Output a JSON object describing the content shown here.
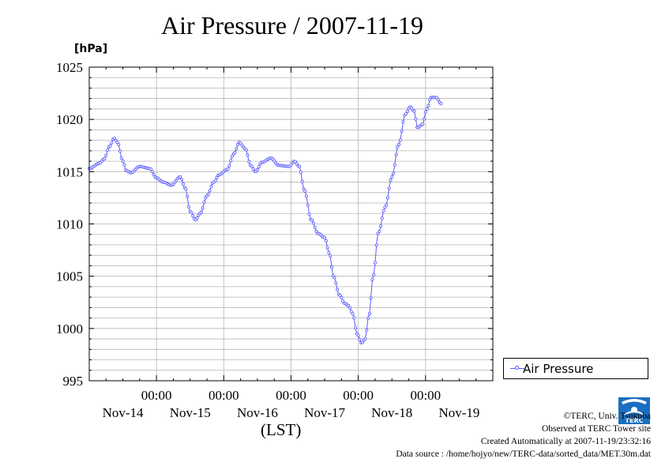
{
  "chart_data": {
    "type": "line",
    "title": "Air Pressure / 2007-11-19",
    "ylabel": "[hPa]",
    "xlabel": "(LST)",
    "ylim": [
      995,
      1025
    ],
    "yticks": [
      "995",
      "1000",
      "1005",
      "1010",
      "1015",
      "1020",
      "1025"
    ],
    "xlim_days": [
      0,
      6
    ],
    "xticks": [
      {
        "time": "00:00",
        "date": "Nov-14"
      },
      {
        "time": "00:00",
        "date": "Nov-15"
      },
      {
        "time": "00:00",
        "date": "Nov-16"
      },
      {
        "time": "00:00",
        "date": "Nov-17"
      },
      {
        "time": "00:00",
        "date": "Nov-18"
      },
      {
        "time": "",
        "date": "Nov-19"
      }
    ],
    "grid": true,
    "legend_position": "right",
    "series": [
      {
        "name": "Air Pressure",
        "color": "#5a5aff",
        "anchors": [
          [
            0.0,
            1015.3
          ],
          [
            0.15,
            1015.8
          ],
          [
            0.22,
            1016.2
          ],
          [
            0.3,
            1017.4
          ],
          [
            0.37,
            1018.2
          ],
          [
            0.42,
            1017.8
          ],
          [
            0.5,
            1016.0
          ],
          [
            0.55,
            1015.1
          ],
          [
            0.62,
            1014.9
          ],
          [
            0.75,
            1015.5
          ],
          [
            0.9,
            1015.3
          ],
          [
            1.0,
            1014.4
          ],
          [
            1.1,
            1014.0
          ],
          [
            1.22,
            1013.7
          ],
          [
            1.35,
            1014.5
          ],
          [
            1.43,
            1013.4
          ],
          [
            1.5,
            1011.2
          ],
          [
            1.58,
            1010.4
          ],
          [
            1.65,
            1011.0
          ],
          [
            1.75,
            1012.7
          ],
          [
            1.85,
            1014.0
          ],
          [
            1.93,
            1014.7
          ],
          [
            2.05,
            1015.2
          ],
          [
            2.15,
            1016.7
          ],
          [
            2.23,
            1017.8
          ],
          [
            2.32,
            1017.2
          ],
          [
            2.4,
            1015.6
          ],
          [
            2.47,
            1015.0
          ],
          [
            2.57,
            1015.9
          ],
          [
            2.7,
            1016.3
          ],
          [
            2.82,
            1015.6
          ],
          [
            2.97,
            1015.5
          ],
          [
            3.05,
            1016.0
          ],
          [
            3.12,
            1015.5
          ],
          [
            3.2,
            1013.2
          ],
          [
            3.3,
            1010.4
          ],
          [
            3.4,
            1009.1
          ],
          [
            3.5,
            1008.7
          ],
          [
            3.57,
            1007.2
          ],
          [
            3.63,
            1005.0
          ],
          [
            3.72,
            1003.2
          ],
          [
            3.8,
            1002.4
          ],
          [
            3.85,
            1002.2
          ],
          [
            3.92,
            1001.4
          ],
          [
            3.98,
            999.5
          ],
          [
            4.05,
            998.6
          ],
          [
            4.1,
            999.0
          ],
          [
            4.16,
            1001.3
          ],
          [
            4.22,
            1005.0
          ],
          [
            4.3,
            1009.2
          ],
          [
            4.4,
            1011.6
          ],
          [
            4.5,
            1014.5
          ],
          [
            4.6,
            1017.6
          ],
          [
            4.7,
            1020.5
          ],
          [
            4.77,
            1021.2
          ],
          [
            4.83,
            1020.8
          ],
          [
            4.88,
            1019.2
          ],
          [
            4.95,
            1019.5
          ],
          [
            5.02,
            1021.0
          ],
          [
            5.08,
            1022.1
          ],
          [
            5.16,
            1022.1
          ],
          [
            5.23,
            1021.5
          ]
        ]
      }
    ]
  },
  "footer": {
    "copyright": "©TERC, Univ. Tsukuba",
    "observed": "Observed at TERC Tower site",
    "created": "Created Automatically at 2007-11-19/23:32:16",
    "source": "Data source : /home/hojyo/new/TERC-data/sorted_data/MET.30m.dat"
  },
  "logo_text": "TERC"
}
